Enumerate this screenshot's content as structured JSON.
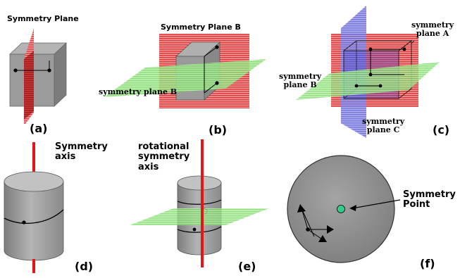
{
  "panels": {
    "a": {
      "caption": "(a)",
      "title": "Symmetry Plane"
    },
    "b": {
      "caption": "(b)",
      "title": "Symmetry Plane B",
      "plane_label": "symmetry plane B"
    },
    "c": {
      "caption": "(c)",
      "label_a": "symmetry\nplane A",
      "label_b": "symmetry\nplane B",
      "label_c": "symmetry\nplane C"
    },
    "d": {
      "caption": "(d)",
      "title": "Symmetry\naxis"
    },
    "e": {
      "caption": "(e)",
      "title": "rotational\nsymmetry\naxis"
    },
    "f": {
      "caption": "(f)",
      "point_label": "Symmetry\nPoint"
    }
  },
  "colors": {
    "plane_red": "#e23b3b",
    "plane_green": "#8fe07a",
    "plane_blue": "#6f6fdc",
    "axis_red": "#e01818",
    "box_gray": "#9a9a9a",
    "sphere_gray": "#8c8c8c",
    "point_green": "#33cc88"
  }
}
